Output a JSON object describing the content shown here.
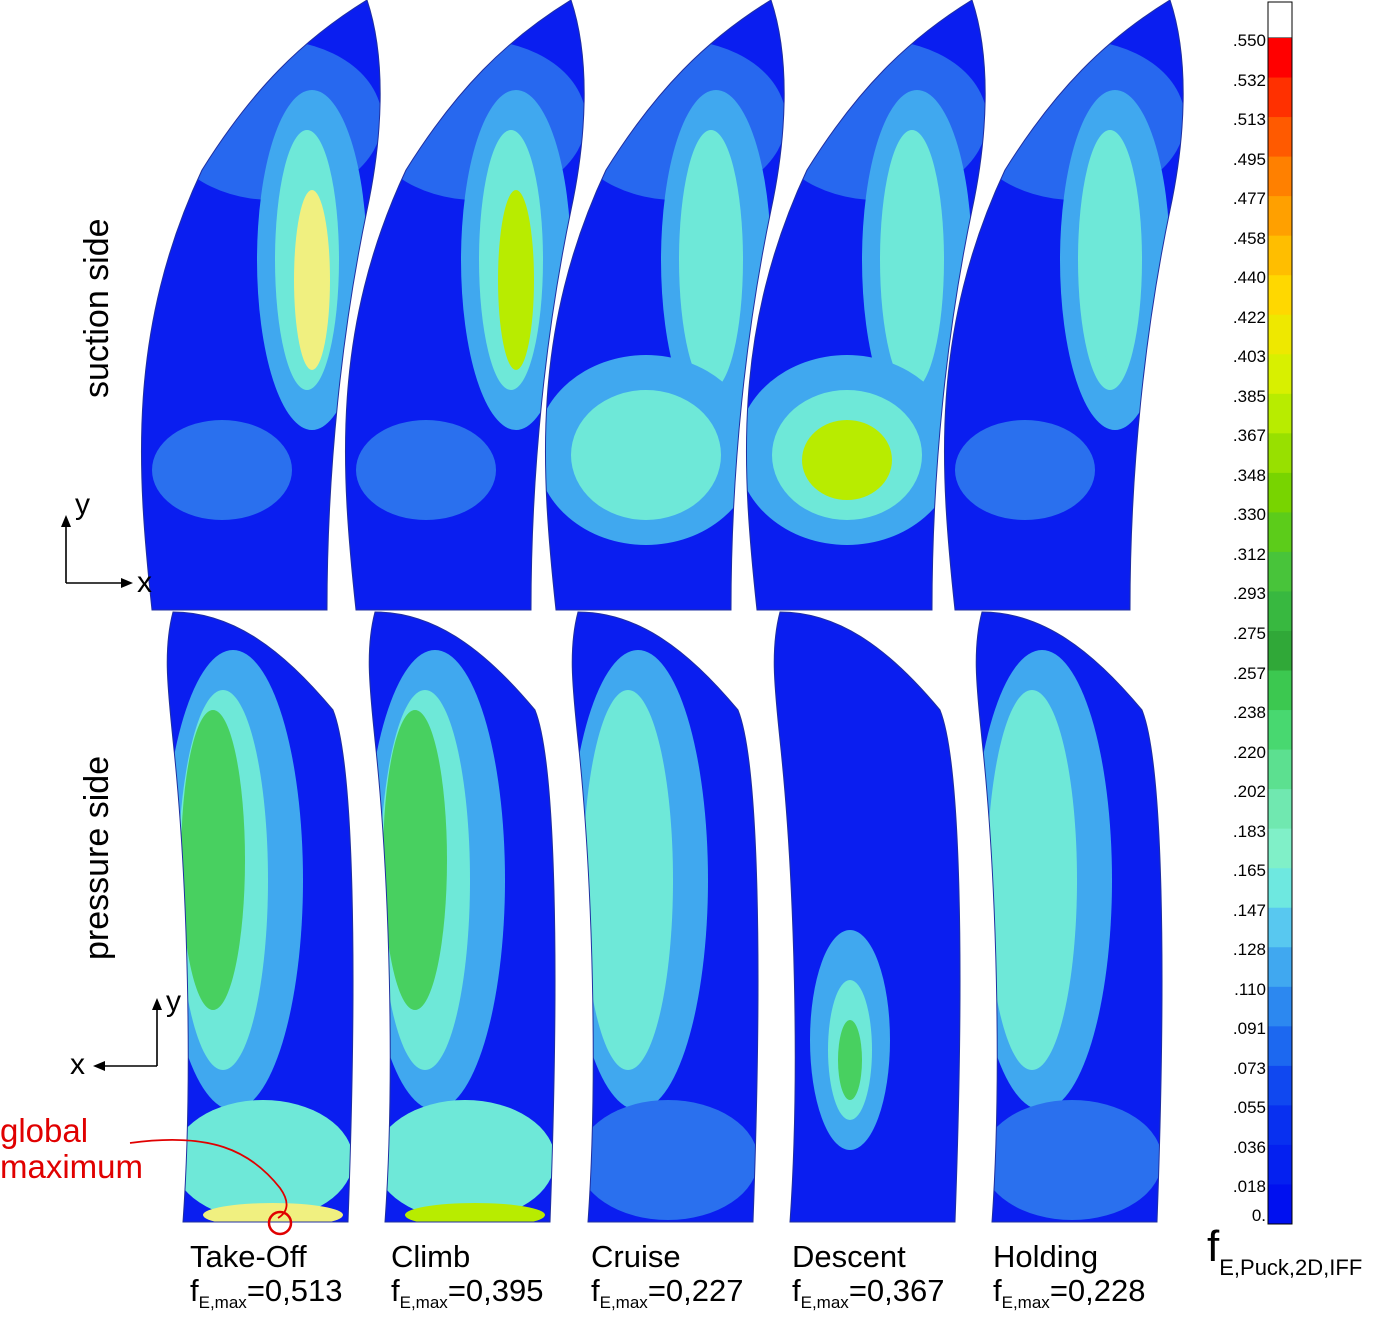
{
  "row_labels": {
    "top": "suction side",
    "bottom": "pressure side"
  },
  "cases": [
    {
      "name": "Take-Off",
      "fmax_prefix": "f",
      "fmax_sub": "E,max",
      "fmax_value": "=0,513",
      "max_value": 0.513
    },
    {
      "name": "Climb",
      "fmax_prefix": "f",
      "fmax_sub": "E,max",
      "fmax_value": "=0,395",
      "max_value": 0.395
    },
    {
      "name": "Cruise",
      "fmax_prefix": "f",
      "fmax_sub": "E,max",
      "fmax_value": "=0,227",
      "max_value": 0.227
    },
    {
      "name": "Descent",
      "fmax_prefix": "f",
      "fmax_sub": "E,max",
      "fmax_value": "=0,367",
      "max_value": 0.367
    },
    {
      "name": "Holding",
      "fmax_prefix": "f",
      "fmax_sub": "E,max",
      "fmax_value": "=0,228",
      "max_value": 0.228
    }
  ],
  "axes": {
    "top": {
      "y": "y",
      "x": "x",
      "x_direction": "right"
    },
    "bottom": {
      "y": "y",
      "x": "x",
      "x_direction": "left"
    }
  },
  "annotation": {
    "line1": "global",
    "line2": "maximum",
    "color": "#e00000"
  },
  "colorbar": {
    "title_main": "f",
    "title_sub": "E,Puck,2D,IFF",
    "ticks": [
      ".550",
      ".532",
      ".513",
      ".495",
      ".477",
      ".458",
      ".440",
      ".422",
      ".403",
      ".385",
      ".367",
      ".348",
      ".330",
      ".312",
      ".293",
      ".275",
      ".257",
      ".238",
      ".220",
      ".202",
      ".183",
      ".165",
      ".147",
      ".128",
      ".110",
      ".091",
      ".073",
      ".055",
      ".036",
      ".018",
      "0."
    ],
    "colors": [
      "#ff0000",
      "#ff3000",
      "#ff5a00",
      "#ff8000",
      "#ffa000",
      "#ffbe00",
      "#ffd800",
      "#eee800",
      "#d8f000",
      "#b8ec00",
      "#98e000",
      "#78d400",
      "#5ccc1a",
      "#48c43a",
      "#38b840",
      "#30a838",
      "#3cc850",
      "#48d870",
      "#5ce090",
      "#70e8b0",
      "#80f0c8",
      "#6ee8e0",
      "#58c8f0",
      "#40a8f0",
      "#2c88f0",
      "#1c68f0",
      "#1048f0",
      "#0830f0",
      "#0420f0",
      "#0010f0"
    ],
    "overflow_color": "#ffffff"
  },
  "field_colors": {
    "low": "#0a1ef0",
    "lowmid": "#2a70ee",
    "mid": "#40a8ef",
    "cyan": "#6ee8d8",
    "green": "#48d060",
    "yellowgreen": "#b8ec00",
    "yellow": "#f0f080"
  }
}
